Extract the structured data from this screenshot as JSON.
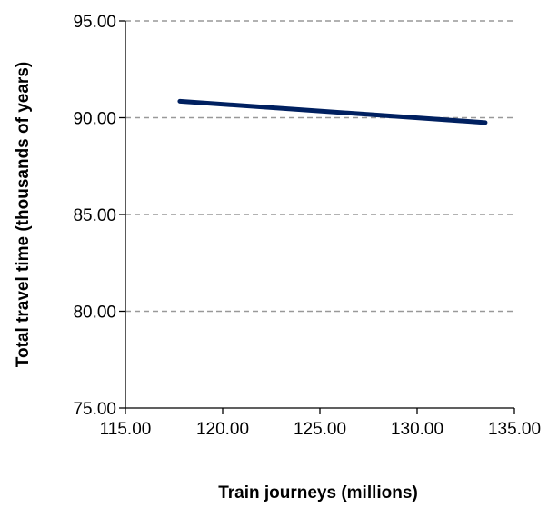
{
  "chart_data": {
    "type": "line",
    "title": "",
    "xlabel": "Train journeys (millions)",
    "ylabel": "Total travel time (thousands  of years)",
    "xlim": [
      115,
      135
    ],
    "ylim": [
      75,
      95
    ],
    "x_ticks": [
      "115.00",
      "120.00",
      "125.00",
      "130.00",
      "135.00"
    ],
    "y_ticks": [
      "75.00",
      "80.00",
      "85.00",
      "90.00",
      "95.00"
    ],
    "grid": "horizontal dashed",
    "legend": "none",
    "series": [
      {
        "color": "#002060",
        "x": [
          117.8,
          133.5
        ],
        "y": [
          90.85,
          89.75
        ]
      }
    ]
  }
}
